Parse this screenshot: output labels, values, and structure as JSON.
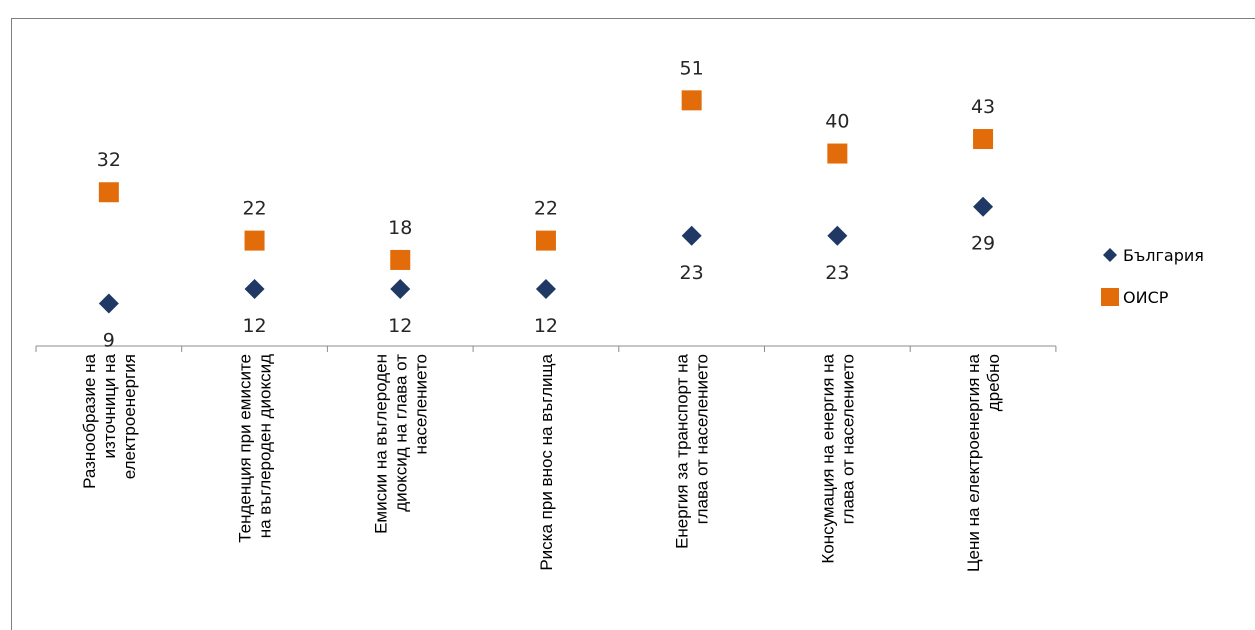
{
  "chart_data": {
    "type": "scatter",
    "categories": [
      [
        "Разнообразие на",
        "източници на",
        "електроенергия"
      ],
      [
        "Тенденция при емисите",
        "на въглероден диоксид"
      ],
      [
        "Емисии на въглероден",
        "диоксид на глава от",
        "населението"
      ],
      [
        "Риска при внос на въглища"
      ],
      [
        "Енергия за транспорт на",
        "глава от населението"
      ],
      [
        "Консумация на енергия на",
        "глава от населението"
      ],
      [
        "Цени на електроенергия на",
        "дребно"
      ]
    ],
    "series": [
      {
        "name": "България",
        "values": [
          9,
          12,
          12,
          12,
          23,
          23,
          29
        ],
        "color": "#1f3864",
        "marker": "diamond"
      },
      {
        "name": "ОИСР",
        "values": [
          32,
          22,
          18,
          22,
          51,
          40,
          43
        ],
        "color": "#e36c0a",
        "marker": "square"
      }
    ],
    "legend_position": "right",
    "grid": false
  }
}
